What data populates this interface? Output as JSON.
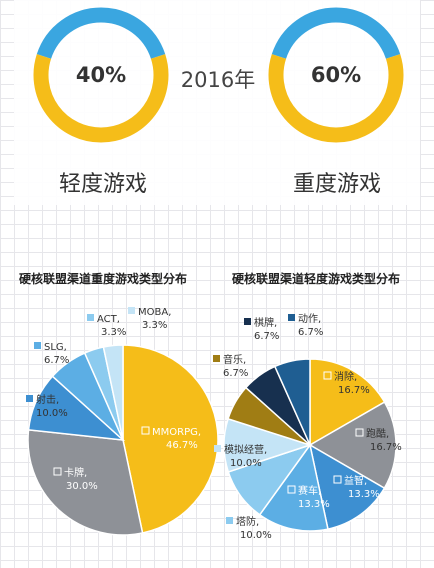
{
  "summary": {
    "year": "2016年",
    "light": {
      "percent": "40%",
      "label": "轻度游戏",
      "value": 40
    },
    "heavy": {
      "percent": "60%",
      "label": "重度游戏",
      "value": 60
    }
  },
  "colors": {
    "blue": "#3aa6e0",
    "yellow": "#f5bd19",
    "gray": "#8e9197"
  },
  "chart_data": [
    {
      "type": "pie",
      "title": "硬核联盟渠道重度游戏类型分布",
      "slices": [
        {
          "name": "MMORPG",
          "value": 46.7,
          "label": "MMORPG,",
          "pct": "46.7%",
          "color": "#f5bd19"
        },
        {
          "name": "卡牌",
          "value": 30.0,
          "label": "卡牌,",
          "pct": "30.0%",
          "color": "#8e9197"
        },
        {
          "name": "射击",
          "value": 10.0,
          "label": "射击,",
          "pct": "10.0%",
          "color": "#3d8fd1"
        },
        {
          "name": "SLG",
          "value": 6.7,
          "label": "SLG,",
          "pct": "6.7%",
          "color": "#5caee4"
        },
        {
          "name": "ACT",
          "value": 3.3,
          "label": "ACT,",
          "pct": "3.3%",
          "color": "#8ccbef"
        },
        {
          "name": "MOBA",
          "value": 3.3,
          "label": "MOBA,",
          "pct": "3.3%",
          "color": "#c4e4f6"
        }
      ]
    },
    {
      "type": "pie",
      "title": "硬核联盟渠道轻度游戏类型分布",
      "slices": [
        {
          "name": "消除",
          "value": 16.7,
          "label": "消除,",
          "pct": "16.7%",
          "color": "#f5bd19"
        },
        {
          "name": "跑酷",
          "value": 16.7,
          "label": "跑酷,",
          "pct": "16.7%",
          "color": "#8e9197"
        },
        {
          "name": "益智",
          "value": 13.3,
          "label": "益智,",
          "pct": "13.3%",
          "color": "#3d8fd1"
        },
        {
          "name": "赛车",
          "value": 13.3,
          "label": "赛车,",
          "pct": "13.3%",
          "color": "#5caee4"
        },
        {
          "name": "塔防",
          "value": 10.0,
          "label": "塔防,",
          "pct": "10.0%",
          "color": "#8ccbef"
        },
        {
          "name": "模拟经营",
          "value": 10.0,
          "label": "模拟经营,",
          "pct": "10.0%",
          "color": "#c4e4f6"
        },
        {
          "name": "音乐",
          "value": 6.7,
          "label": "音乐,",
          "pct": "6.7%",
          "color": "#a07d14"
        },
        {
          "name": "棋牌",
          "value": 6.7,
          "label": "棋牌,",
          "pct": "6.7%",
          "color": "#17304f"
        },
        {
          "name": "动作",
          "value": 6.7,
          "label": "动作,",
          "pct": "6.7%",
          "color": "#1f5e92"
        }
      ]
    }
  ]
}
